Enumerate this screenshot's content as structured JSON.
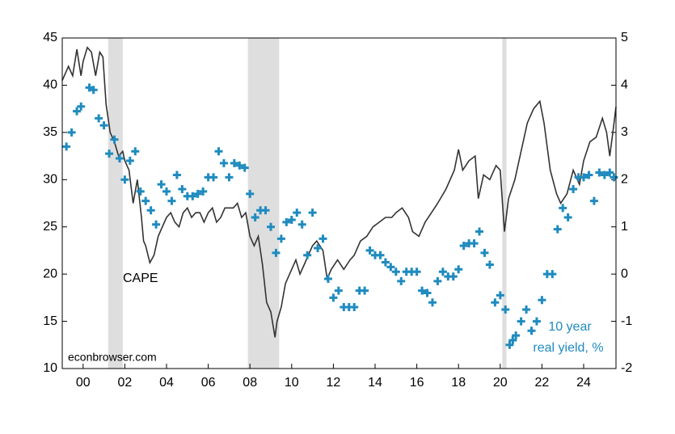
{
  "chart_data": {
    "type": "line",
    "annotations": [
      "CAPE",
      "10 year",
      "real yield, %",
      "econbrowser.com"
    ],
    "xlim": [
      1999,
      2025.55
    ],
    "xticks": [
      {
        "value": 2000,
        "label": "00"
      },
      {
        "value": 2002,
        "label": "02"
      },
      {
        "value": 2004,
        "label": "04"
      },
      {
        "value": 2006,
        "label": "06"
      },
      {
        "value": 2008,
        "label": "08"
      },
      {
        "value": 2010,
        "label": "10"
      },
      {
        "value": 2012,
        "label": "12"
      },
      {
        "value": 2014,
        "label": "14"
      },
      {
        "value": 2016,
        "label": "16"
      },
      {
        "value": 2018,
        "label": "18"
      },
      {
        "value": 2020,
        "label": "20"
      },
      {
        "value": 2022,
        "label": "22"
      },
      {
        "value": 2024,
        "label": "24"
      }
    ],
    "ylim": [
      10,
      45
    ],
    "yticks": [
      10,
      15,
      20,
      25,
      30,
      35,
      40,
      45
    ],
    "y2lim": [
      -2,
      5
    ],
    "y2ticks": [
      -2,
      -1,
      0,
      1,
      2,
      3,
      4,
      5
    ],
    "recessions": [
      [
        2001.2,
        2001.9
      ],
      [
        2007.9,
        2009.4
      ],
      [
        2020.1,
        2020.3
      ]
    ],
    "recession_color": "#dedede",
    "series": [
      {
        "name": "CAPE",
        "color": "#333333",
        "style": "line",
        "x": [
          1999.0,
          1999.3,
          1999.5,
          1999.7,
          1999.9,
          2000.0,
          2000.2,
          2000.4,
          2000.6,
          2000.8,
          2000.95,
          2001.1,
          2001.3,
          2001.5,
          2001.7,
          2001.9,
          2002.0,
          2002.2,
          2002.4,
          2002.6,
          2002.8,
          2002.9,
          2003.0,
          2003.2,
          2003.4,
          2003.6,
          2003.8,
          2004.0,
          2004.2,
          2004.4,
          2004.6,
          2004.8,
          2005.0,
          2005.2,
          2005.4,
          2005.6,
          2005.8,
          2006.0,
          2006.2,
          2006.4,
          2006.6,
          2006.8,
          2007.0,
          2007.2,
          2007.4,
          2007.6,
          2007.8,
          2008.0,
          2008.2,
          2008.4,
          2008.6,
          2008.8,
          2009.0,
          2009.2,
          2009.3,
          2009.5,
          2009.7,
          2010.0,
          2010.2,
          2010.4,
          2010.6,
          2010.8,
          2011.0,
          2011.2,
          2011.5,
          2011.7,
          2011.9,
          2012.2,
          2012.5,
          2012.8,
          2013.0,
          2013.3,
          2013.6,
          2013.9,
          2014.2,
          2014.5,
          2014.8,
          2015.0,
          2015.3,
          2015.6,
          2015.8,
          2016.1,
          2016.4,
          2016.7,
          2017.0,
          2017.4,
          2017.8,
          2018.0,
          2018.2,
          2018.5,
          2018.8,
          2018.95,
          2019.2,
          2019.5,
          2019.8,
          2020.0,
          2020.2,
          2020.4,
          2020.7,
          2021.0,
          2021.3,
          2021.6,
          2021.9,
          2022.1,
          2022.4,
          2022.7,
          2022.9,
          2023.2,
          2023.5,
          2023.8,
          2024.0,
          2024.3,
          2024.6,
          2024.9,
          2025.1,
          2025.25,
          2025.4,
          2025.55
        ],
        "values": [
          40.5,
          42,
          41,
          43.8,
          41,
          42.5,
          44,
          43.5,
          41,
          43.5,
          43,
          38,
          35,
          34,
          32.5,
          33,
          32,
          31,
          27.5,
          30,
          26,
          23.5,
          23,
          21.2,
          22,
          24,
          25,
          26,
          26.5,
          25.5,
          25,
          26.5,
          27,
          26,
          26.5,
          26.5,
          25.5,
          26.5,
          27,
          25.5,
          26,
          27,
          27,
          27,
          27.5,
          26,
          26.5,
          24,
          23,
          24,
          21,
          17,
          16,
          13.3,
          15,
          16.5,
          19,
          20.5,
          21.5,
          20,
          21,
          22,
          23,
          23.5,
          22.5,
          19.5,
          20.5,
          21.5,
          20.5,
          21.5,
          22,
          23.5,
          24,
          25,
          25.5,
          26,
          26,
          26.5,
          27,
          26,
          24.5,
          24,
          25.5,
          26.5,
          27.5,
          29,
          31,
          33.2,
          31,
          32,
          32.5,
          28,
          30.5,
          30,
          31.5,
          31,
          24.5,
          28,
          30,
          33,
          36,
          37.5,
          38.3,
          36,
          31,
          28.5,
          27.5,
          28.5,
          31,
          29.5,
          32,
          34,
          34.5,
          36.5,
          35,
          32.5,
          35,
          37.7
        ]
      },
      {
        "name": "10 year real yield, %",
        "color": "#1f8bbf",
        "style": "cross",
        "axis": "y2",
        "x": [
          1999.2,
          1999.45,
          1999.7,
          1999.9,
          2000.3,
          2000.5,
          2000.75,
          2001.0,
          2001.25,
          2001.5,
          2001.75,
          2002.0,
          2002.25,
          2002.5,
          2002.75,
          2003.0,
          2003.25,
          2003.5,
          2003.75,
          2004.0,
          2004.25,
          2004.5,
          2004.75,
          2005.0,
          2005.25,
          2005.5,
          2005.75,
          2006.0,
          2006.25,
          2006.5,
          2006.75,
          2007.0,
          2007.25,
          2007.5,
          2007.75,
          2008.0,
          2008.25,
          2008.5,
          2008.75,
          2009.0,
          2009.25,
          2009.5,
          2009.75,
          2010.0,
          2010.25,
          2010.5,
          2010.75,
          2011.0,
          2011.25,
          2011.5,
          2011.75,
          2012.0,
          2012.25,
          2012.5,
          2012.75,
          2013.0,
          2013.25,
          2013.5,
          2013.75,
          2014.0,
          2014.25,
          2014.5,
          2014.75,
          2015.0,
          2015.25,
          2015.5,
          2015.75,
          2016.0,
          2016.25,
          2016.5,
          2016.75,
          2017.0,
          2017.25,
          2017.5,
          2017.75,
          2018.0,
          2018.25,
          2018.5,
          2018.75,
          2019.0,
          2019.25,
          2019.5,
          2019.75,
          2020.0,
          2020.25,
          2020.45,
          2020.6,
          2020.75,
          2021.0,
          2021.25,
          2021.5,
          2021.75,
          2022.0,
          2022.25,
          2022.5,
          2022.75,
          2023.0,
          2023.25,
          2023.5,
          2023.75,
          2024.0,
          2024.25,
          2024.5,
          2024.75,
          2025.0,
          2025.25,
          2025.45
        ],
        "values": [
          2.7,
          3.0,
          3.45,
          3.55,
          3.95,
          3.9,
          3.3,
          3.15,
          2.55,
          2.85,
          2.45,
          2.0,
          2.4,
          2.6,
          1.75,
          1.55,
          1.35,
          1.05,
          1.9,
          1.75,
          1.55,
          2.1,
          1.8,
          1.65,
          1.65,
          1.7,
          1.75,
          2.05,
          2.05,
          2.6,
          2.35,
          2.05,
          2.35,
          2.3,
          2.25,
          1.7,
          1.2,
          1.35,
          1.35,
          1.0,
          0.45,
          0.75,
          1.1,
          1.15,
          1.3,
          1.05,
          0.4,
          1.3,
          0.55,
          0.75,
          -0.1,
          -0.5,
          -0.35,
          -0.7,
          -0.7,
          -0.7,
          -0.35,
          -0.35,
          0.5,
          0.4,
          0.4,
          0.25,
          0.15,
          0.05,
          -0.15,
          0.05,
          0.05,
          0.05,
          -0.35,
          -0.4,
          -0.6,
          -0.15,
          0.05,
          -0.05,
          -0.05,
          0.1,
          0.6,
          0.65,
          0.65,
          0.9,
          0.45,
          0.2,
          -0.6,
          -0.45,
          -0.75,
          -1.5,
          -1.4,
          -1.3,
          -1.0,
          -0.75,
          -1.2,
          -1.0,
          -0.55,
          0.0,
          0.0,
          0.95,
          1.4,
          1.2,
          1.8,
          2.05,
          2.05,
          2.1,
          1.55,
          2.15,
          2.1,
          2.15,
          2.05
        ]
      }
    ]
  }
}
